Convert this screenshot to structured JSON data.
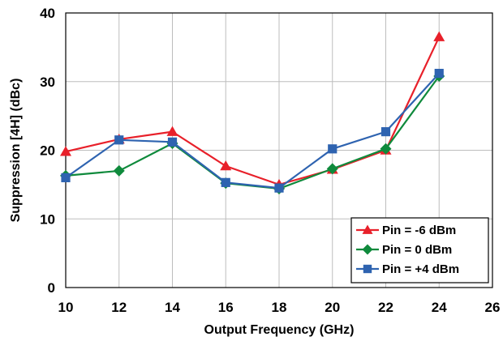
{
  "chart_data": {
    "type": "line",
    "title": "",
    "xlabel": "Output Frequency (GHz)",
    "ylabel": "Suppression [4H] (dBc)",
    "xlim": [
      10,
      26
    ],
    "ylim": [
      0,
      40
    ],
    "x_ticks": [
      "10",
      "12",
      "14",
      "16",
      "18",
      "20",
      "22",
      "24",
      "26"
    ],
    "y_ticks": [
      "0",
      "10",
      "20",
      "30",
      "40"
    ],
    "grid": true,
    "legend_position": "bottom-right",
    "series": [
      {
        "name": "Pin = -6 dBm",
        "color": "#e8202a",
        "marker": "triangle",
        "x": [
          10,
          12,
          14,
          16,
          18,
          20,
          22,
          24
        ],
        "y": [
          19.8,
          21.6,
          22.7,
          17.7,
          15.0,
          17.2,
          20.0,
          36.5
        ]
      },
      {
        "name": "Pin = 0 dBm",
        "color": "#0f8a3c",
        "marker": "diamond",
        "x": [
          10,
          12,
          14,
          16,
          18,
          20,
          22,
          24
        ],
        "y": [
          16.3,
          17.0,
          21.0,
          15.2,
          14.4,
          17.3,
          20.2,
          30.8
        ]
      },
      {
        "name": "Pin = +4 dBm",
        "color": "#2e63b0",
        "marker": "square",
        "x": [
          10,
          12,
          14,
          16,
          18,
          20,
          22,
          24
        ],
        "y": [
          16.0,
          21.5,
          21.2,
          15.3,
          14.5,
          20.2,
          22.7,
          31.2
        ]
      }
    ]
  }
}
